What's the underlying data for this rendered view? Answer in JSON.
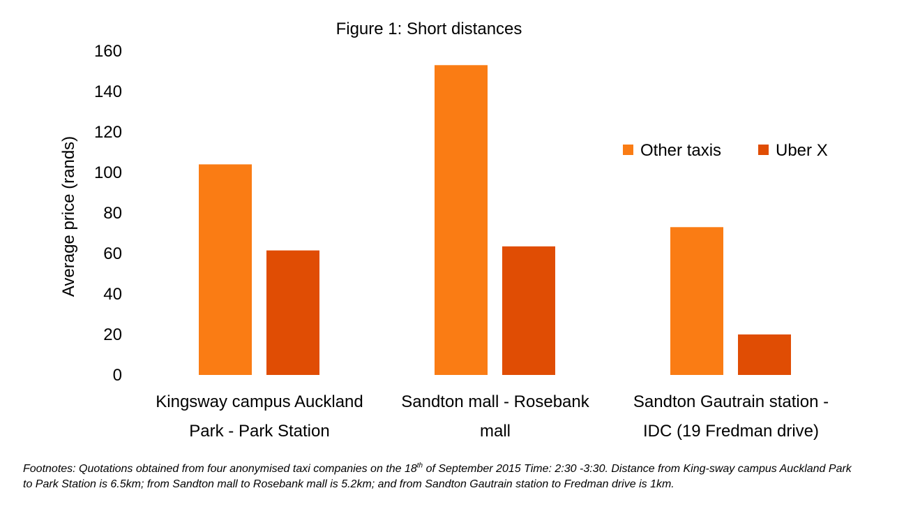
{
  "chart_data": {
    "type": "bar",
    "title": "Figure 1: Short distances",
    "ylabel": "Average price (rands)",
    "xlabel": "",
    "ylim": [
      0,
      160
    ],
    "yticks": [
      0,
      20,
      40,
      60,
      80,
      100,
      120,
      140,
      160
    ],
    "grid": false,
    "legend_position": "right",
    "categories": [
      [
        "Kingsway campus Auckland",
        "Park - Park Station"
      ],
      [
        "Sandton mall - Rosebank",
        "mall"
      ],
      [
        "Sandton Gautrain station -",
        "IDC (19 Fredman drive)"
      ]
    ],
    "series": [
      {
        "name": "Other taxis",
        "color": "#FA7C14",
        "values": [
          104,
          153,
          73
        ]
      },
      {
        "name": "Uber X",
        "color": "#E04D04",
        "values": [
          61.5,
          63.5,
          20
        ]
      }
    ]
  },
  "footnote": {
    "part1": "Footnotes: Quotations obtained from four anonymised taxi companies on the 18",
    "sup": "th",
    "part2": " of September 2015 Time: 2:30 -3:30. Distance from King-sway campus Auckland Park to Park Station is 6.5km; from Sandton mall to Rosebank mall is 5.2km; and from Sandton Gautrain station to Fredman drive is 1km."
  }
}
